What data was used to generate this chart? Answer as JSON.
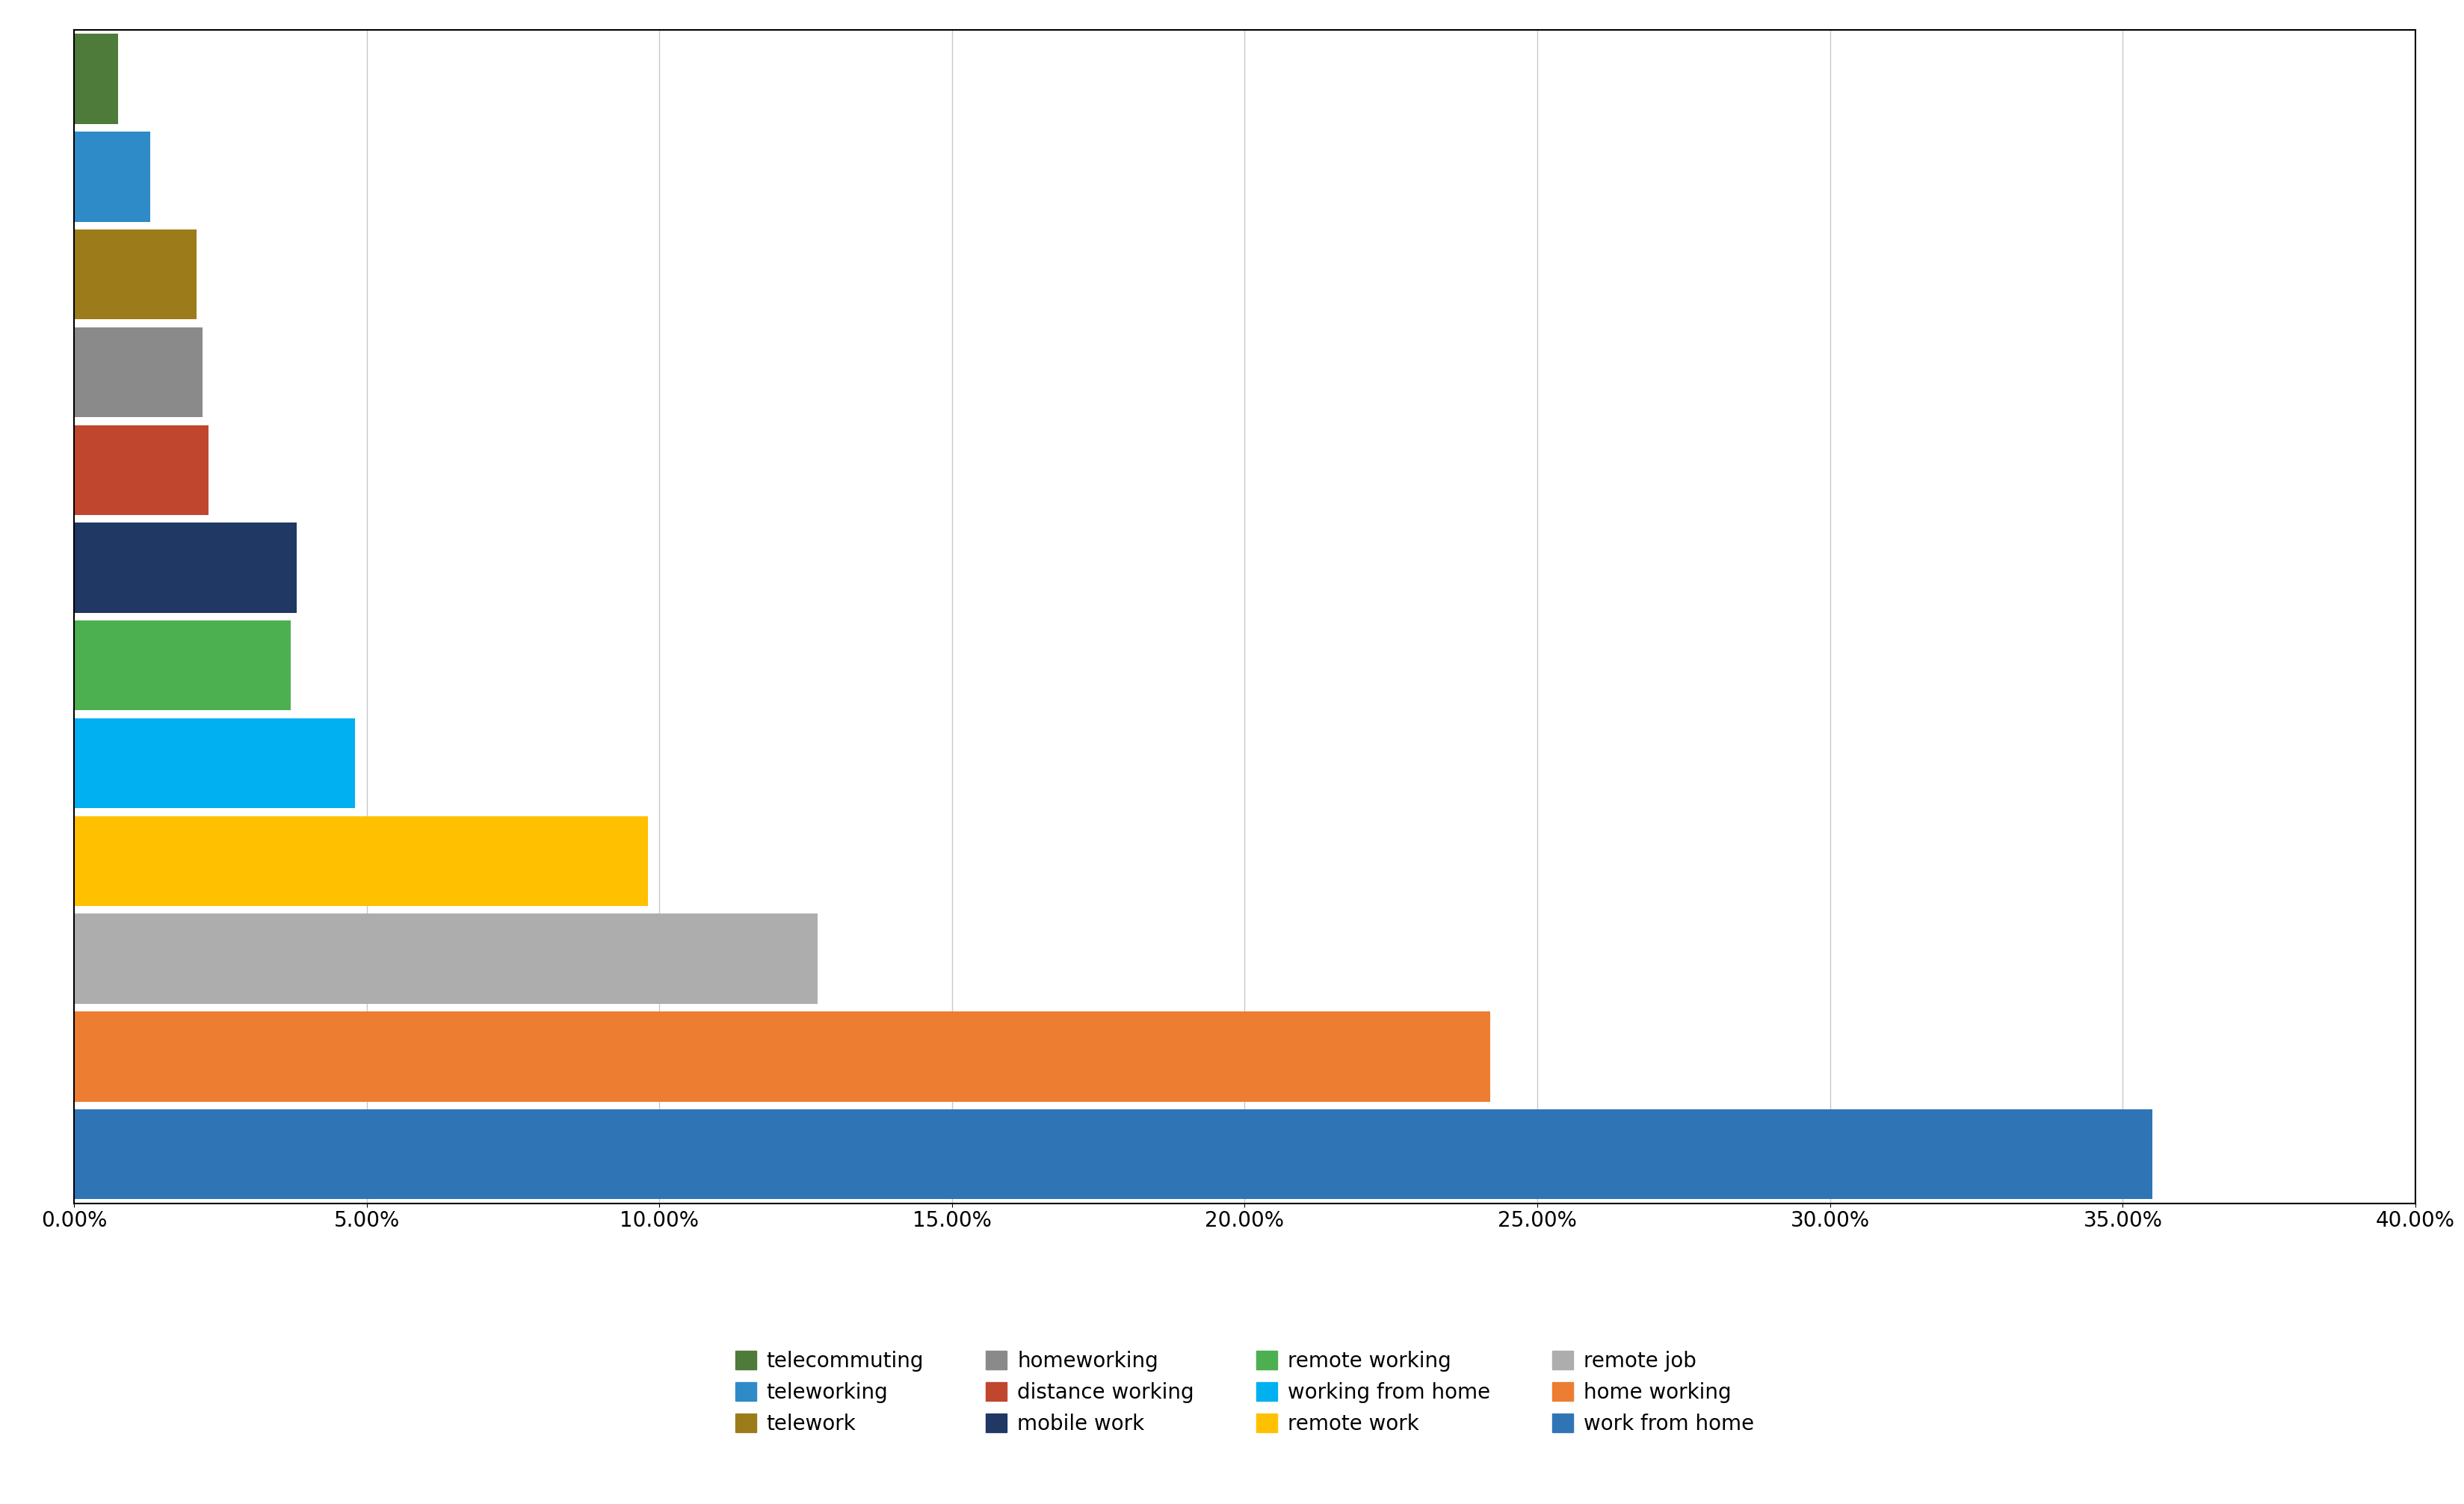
{
  "categories_top_to_bottom": [
    "telecommuting",
    "teleworking",
    "telework",
    "homeworking",
    "distance working",
    "mobile work",
    "remote working",
    "working from home",
    "remote work",
    "remote job",
    "home working",
    "work from home"
  ],
  "values_top_to_bottom": [
    0.0075,
    0.013,
    0.021,
    0.022,
    0.023,
    0.038,
    0.037,
    0.048,
    0.098,
    0.127,
    0.242,
    0.355
  ],
  "colors_top_to_bottom": [
    "#4E7B3A",
    "#2E8BC7",
    "#9C7B1A",
    "#8A8A8A",
    "#C0462E",
    "#1F3864",
    "#4CAF50",
    "#00B0F0",
    "#FFC000",
    "#ADADAD",
    "#ED7D31",
    "#2F75B6"
  ],
  "legend_entries": [
    {
      "label": "telecommuting",
      "color": "#4E7B3A"
    },
    {
      "label": "teleworking",
      "color": "#2E8BC7"
    },
    {
      "label": "telework",
      "color": "#9C7B1A"
    },
    {
      "label": "homeworking",
      "color": "#8A8A8A"
    },
    {
      "label": "distance working",
      "color": "#C0462E"
    },
    {
      "label": "mobile work",
      "color": "#1F3864"
    },
    {
      "label": "remote working",
      "color": "#4CAF50"
    },
    {
      "label": "working from home",
      "color": "#00B0F0"
    },
    {
      "label": "remote work",
      "color": "#FFC000"
    },
    {
      "label": "remote job",
      "color": "#ADADAD"
    },
    {
      "label": "home working",
      "color": "#ED7D31"
    },
    {
      "label": "work from home",
      "color": "#2F75B6"
    }
  ],
  "xlim": [
    0,
    0.4
  ],
  "xticks": [
    0.0,
    0.05,
    0.1,
    0.15,
    0.2,
    0.25,
    0.3,
    0.35,
    0.4
  ],
  "xticklabels": [
    "0.00%",
    "5.00%",
    "10.00%",
    "15.00%",
    "20.00%",
    "25.00%",
    "30.00%",
    "35.00%",
    "40.00%"
  ],
  "background_color": "#FFFFFF",
  "tick_fontsize": 20,
  "legend_fontsize": 20,
  "grid_color": "#C8C8C8",
  "border_color": "#000000"
}
